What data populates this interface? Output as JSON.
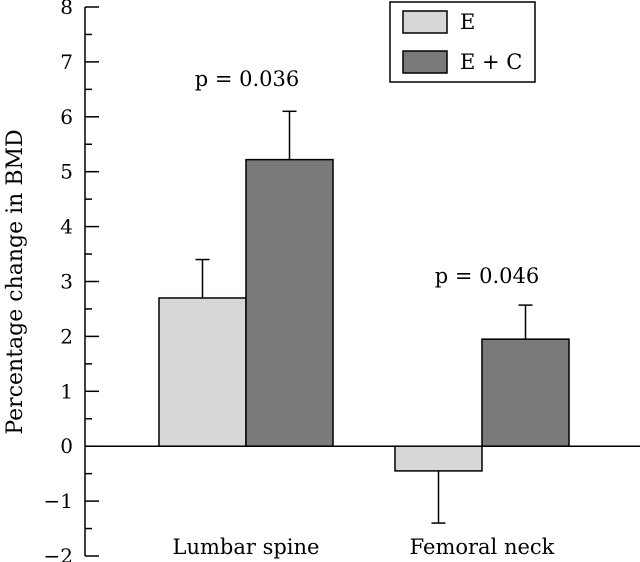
{
  "chart_data": {
    "type": "bar",
    "title": "",
    "xlabel": "",
    "ylabel": "Percentage change in BMD",
    "ylim": [
      -2,
      8
    ],
    "yticks": [
      -2,
      -1,
      0,
      1,
      2,
      3,
      4,
      5,
      6,
      7,
      8
    ],
    "ytick_labels": [
      "−2",
      "−1",
      "0",
      "1",
      "2",
      "3",
      "4",
      "5",
      "6",
      "7",
      "8"
    ],
    "categories": [
      "Lumbar spine",
      "Femoral neck"
    ],
    "series": [
      {
        "name": "E",
        "color": "#d6d8d6",
        "values": [
          2.7,
          -0.45
        ],
        "error": [
          0.7,
          0.95
        ]
      },
      {
        "name": "E + C",
        "color": "#7a7a7a",
        "values": [
          5.22,
          1.95
        ],
        "error": [
          0.88,
          0.62
        ]
      }
    ],
    "annotations": [
      "p = 0.036",
      "p = 0.046"
    ],
    "legend_position": "top-right",
    "grid": false
  }
}
